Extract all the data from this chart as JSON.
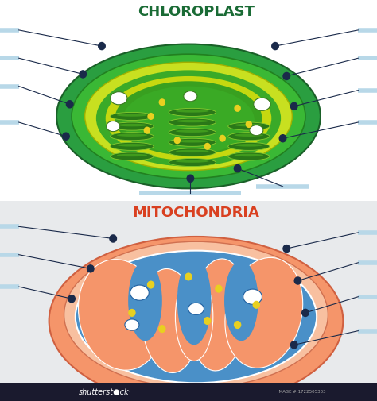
{
  "title_chloroplast": "CHLOROPLAST",
  "title_mitochondria": "MITOCHONDRIA",
  "chloroplast_title_color": "#1a6b35",
  "mitochondria_title_color": "#d94020",
  "bg_top": "#f8f8f8",
  "bg_bottom": "#e8eaec",
  "line_color": "#1a2a4a",
  "label_bar_color": "#b8d8e8",
  "chloro_outer_dark": "#2a9e40",
  "chloro_outer_mid": "#32b845",
  "chloro_inner_yellow": "#c8e020",
  "chloro_stroma": "#3aaa28",
  "thylakoid_dark": "#2a7818",
  "thylakoid_mid": "#4aaa20",
  "thylakoid_light": "#88cc30",
  "mito_outer": "#f5956a",
  "mito_inner": "#f0a878",
  "mito_matrix": "#e8f0f8",
  "mito_blue": "#4a90c8",
  "mito_cristae": "#f5956a",
  "white_oval": "#ffffff",
  "yellow_dot": "#e8d020",
  "dot_blue": "#3a5a8a"
}
